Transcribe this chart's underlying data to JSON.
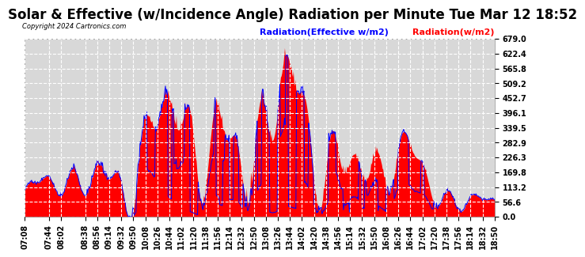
{
  "title": "Solar & Effective (w/Incidence Angle) Radiation per Minute Tue Mar 12 18:52",
  "copyright": "Copyright 2024 Cartronics.com",
  "legend_blue": "Radiation(Effective w/m2)",
  "legend_red": "Radiation(w/m2)",
  "ymin": 0.0,
  "ymax": 679.0,
  "yticks": [
    0.0,
    56.6,
    113.2,
    169.8,
    226.3,
    282.9,
    339.5,
    396.1,
    452.7,
    509.2,
    565.8,
    622.4,
    679.0
  ],
  "background_color": "#ffffff",
  "plot_bg_color": "#d8d8d8",
  "grid_color": "#ffffff",
  "red_color": "#ff0000",
  "blue_color": "#0000ff",
  "title_fontsize": 12,
  "tick_fontsize": 7,
  "legend_fontsize": 8
}
